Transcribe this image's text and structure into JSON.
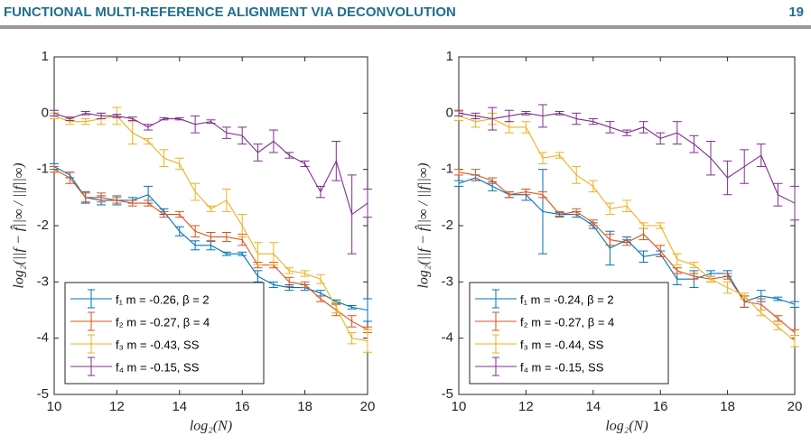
{
  "header": {
    "title": "FUNCTIONAL MULTI-REFERENCE ALIGNMENT VIA DECONVOLUTION",
    "page": 19
  },
  "chart_data": [
    {
      "type": "line",
      "xlabel": "log₂(N)",
      "ylabel": "log₂(||f − f̂||∞ / ||f||∞)",
      "x": [
        10,
        10.5,
        11,
        11.5,
        12,
        12.5,
        13,
        13.5,
        14,
        14.5,
        15,
        15.5,
        16,
        16.5,
        17,
        17.5,
        18,
        18.5,
        19,
        19.5,
        20
      ],
      "xlim": [
        10,
        20
      ],
      "xticks": [
        10,
        12,
        14,
        16,
        18,
        20
      ],
      "ylim": [
        -5,
        1
      ],
      "yticks": [
        -5,
        -4,
        -3,
        -2,
        -1,
        0,
        1
      ],
      "legend": "lower left",
      "series": [
        {
          "name": "f₁  m = -0.26, β = 2",
          "color": "#0072bd",
          "values": [
            -0.95,
            -1.1,
            -1.5,
            -1.55,
            -1.55,
            -1.55,
            -1.45,
            -1.75,
            -2.1,
            -2.35,
            -2.35,
            -2.5,
            -2.5,
            -2.9,
            -3.05,
            -3.1,
            -3.1,
            -3.2,
            -3.35,
            -3.45,
            -3.5
          ],
          "errors": [
            0.05,
            0.05,
            0.1,
            0.08,
            0.08,
            0.05,
            0.15,
            0.05,
            0.08,
            0.08,
            0.08,
            0.03,
            0.03,
            0.1,
            0.05,
            0.05,
            0.05,
            0.05,
            0.03,
            0.03,
            0.2
          ]
        },
        {
          "name": "f₂  m = -0.27, β = 4",
          "color": "#d95319",
          "values": [
            -1.0,
            -1.15,
            -1.5,
            -1.5,
            -1.55,
            -1.6,
            -1.6,
            -1.8,
            -1.8,
            -2.1,
            -2.2,
            -2.2,
            -2.25,
            -2.7,
            -2.7,
            -3.0,
            -3.05,
            -3.3,
            -3.5,
            -3.7,
            -3.85
          ],
          "errors": [
            0.05,
            0.1,
            0.08,
            0.08,
            0.05,
            0.05,
            0.05,
            0.05,
            0.05,
            0.1,
            0.08,
            0.08,
            0.1,
            0.05,
            0.05,
            0.08,
            0.05,
            0.05,
            0.1,
            0.1,
            0.05
          ]
        },
        {
          "name": "f₃  m = -0.43, SS",
          "color": "#edb120",
          "values": [
            -0.05,
            -0.15,
            -0.15,
            -0.1,
            -0.05,
            -0.35,
            -0.5,
            -0.8,
            -0.9,
            -1.4,
            -1.7,
            -1.55,
            -2.0,
            -2.5,
            -2.5,
            -2.8,
            -2.85,
            -2.95,
            -3.45,
            -4.0,
            -4.05
          ],
          "errors": [
            0.05,
            0.05,
            0.05,
            0.1,
            0.15,
            0.2,
            0.05,
            0.15,
            0.1,
            0.15,
            0.05,
            0.2,
            0.2,
            0.2,
            0.2,
            0.05,
            0.05,
            0.08,
            0.1,
            0.1,
            0.2
          ]
        },
        {
          "name": "f₄  m = -0.15, SS",
          "color": "#7e2f8e",
          "values": [
            0.0,
            -0.1,
            0.0,
            -0.05,
            -0.05,
            -0.1,
            -0.25,
            -0.1,
            -0.1,
            -0.2,
            -0.15,
            -0.35,
            -0.4,
            -0.7,
            -0.5,
            -0.75,
            -0.9,
            -1.4,
            -0.85,
            -1.8,
            -1.6
          ],
          "errors": [
            0.05,
            0.03,
            0.03,
            0.05,
            0.03,
            0.03,
            0.05,
            0.02,
            0.02,
            0.15,
            0.03,
            0.1,
            0.15,
            0.15,
            0.2,
            0.05,
            0.05,
            0.1,
            0.35,
            0.7,
            0.25
          ]
        }
      ]
    },
    {
      "type": "line",
      "xlabel": "log₂(N)",
      "ylabel": "log₂(||f − f̂||∞ / ||f||∞)",
      "x": [
        10,
        10.5,
        11,
        11.5,
        12,
        12.5,
        13,
        13.5,
        14,
        14.5,
        15,
        15.5,
        16,
        16.5,
        17,
        17.5,
        18,
        18.5,
        19,
        19.5,
        20
      ],
      "xlim": [
        10,
        20
      ],
      "xticks": [
        10,
        12,
        14,
        16,
        18,
        20
      ],
      "ylim": [
        -5,
        1
      ],
      "yticks": [
        -5,
        -4,
        -3,
        -2,
        -1,
        0,
        1
      ],
      "legend": "lower left",
      "series": [
        {
          "name": "f₁  m = -0.24, β = 2",
          "color": "#0072bd",
          "values": [
            -1.25,
            -1.15,
            -1.3,
            -1.45,
            -1.45,
            -1.75,
            -1.8,
            -1.8,
            -2.0,
            -2.4,
            -2.25,
            -2.55,
            -2.5,
            -2.95,
            -2.95,
            -2.85,
            -2.85,
            -3.35,
            -3.25,
            -3.3,
            -3.4
          ],
          "errors": [
            0.05,
            0.05,
            0.08,
            0.05,
            0.1,
            0.75,
            0.03,
            0.05,
            0.05,
            0.3,
            0.05,
            0.1,
            0.05,
            0.1,
            0.15,
            0.05,
            0.05,
            0.1,
            0.1,
            0.03,
            0.05
          ]
        },
        {
          "name": "f₂  m = -0.27, β = 4",
          "color": "#d95319",
          "values": [
            -1.05,
            -1.1,
            -1.2,
            -1.45,
            -1.4,
            -1.45,
            -1.8,
            -1.75,
            -1.95,
            -2.25,
            -2.3,
            -2.15,
            -2.45,
            -2.8,
            -2.9,
            -2.95,
            -2.9,
            -3.35,
            -3.4,
            -3.65,
            -3.9
          ],
          "errors": [
            0.05,
            0.1,
            0.05,
            0.05,
            0.05,
            0.05,
            0.05,
            0.05,
            0.05,
            0.1,
            0.05,
            0.1,
            0.1,
            0.05,
            0.05,
            0.05,
            0.05,
            0.1,
            0.1,
            0.05,
            0.05
          ]
        },
        {
          "name": "f₃  m = -0.44, SS",
          "color": "#edb120",
          "values": [
            -0.05,
            -0.15,
            -0.1,
            -0.25,
            -0.25,
            -0.8,
            -0.75,
            -1.1,
            -1.3,
            -1.7,
            -1.65,
            -2.0,
            -2.0,
            -2.6,
            -2.7,
            -2.95,
            -3.1,
            -3.25,
            -3.55,
            -3.8,
            -4.05
          ],
          "errors": [
            0.08,
            0.1,
            0.1,
            0.1,
            0.1,
            0.1,
            0.05,
            0.15,
            0.1,
            0.1,
            0.1,
            0.05,
            0.05,
            0.1,
            0.05,
            0.05,
            0.1,
            0.05,
            0.05,
            0.05,
            0.1
          ]
        },
        {
          "name": "f₄  m = -0.15, SS",
          "color": "#7e2f8e",
          "values": [
            0.0,
            -0.05,
            -0.1,
            -0.05,
            0.0,
            -0.05,
            0.0,
            -0.1,
            -0.15,
            -0.25,
            -0.35,
            -0.25,
            -0.45,
            -0.35,
            -0.55,
            -0.8,
            -1.15,
            -0.95,
            -0.75,
            -1.45,
            -1.6
          ],
          "errors": [
            0.05,
            0.05,
            0.2,
            0.1,
            0.03,
            0.2,
            0.03,
            0.1,
            0.05,
            0.1,
            0.05,
            0.1,
            0.1,
            0.2,
            0.15,
            0.3,
            0.3,
            0.3,
            0.2,
            0.2,
            0.3
          ]
        }
      ]
    }
  ]
}
